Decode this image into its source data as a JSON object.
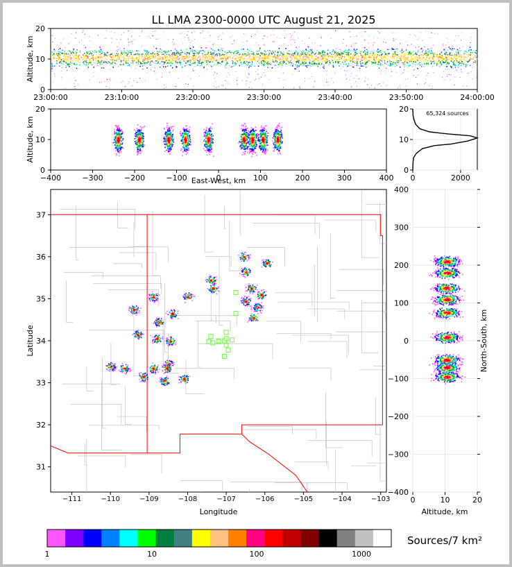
{
  "title": "LL LMA 2300-0000 UTC August 21, 2025",
  "chart_data": [
    {
      "panel": "altitude-vs-time",
      "type": "heatmap",
      "ylabel": "Altitude, km",
      "ylim": [
        0,
        20
      ],
      "yticks": [
        "0",
        "10",
        "20"
      ],
      "xticks": [
        "23:00:00",
        "23:10:00",
        "23:20:00",
        "23:30:00",
        "23:40:00",
        "23:50:00",
        "24:00:00"
      ],
      "band_altitude_km": 10.5
    },
    {
      "panel": "altitude-vs-east-west",
      "type": "heatmap",
      "xlabel": "East-West, km",
      "ylabel": "Altitude, km",
      "xlim": [
        -400,
        400
      ],
      "ylim": [
        0,
        20
      ],
      "xticks": [
        "−400",
        "−300",
        "−200",
        "−100",
        "0",
        "100",
        "200",
        "300",
        "400"
      ],
      "yticks": [
        "0",
        "10",
        "20"
      ],
      "clusters_x_km": [
        -240,
        -190,
        -120,
        -80,
        -25,
        60,
        80,
        105,
        140
      ]
    },
    {
      "panel": "altitude-histogram",
      "type": "line",
      "annotation": "65,324 sources",
      "xlim": [
        0,
        2700
      ],
      "ylim": [
        0,
        20
      ],
      "xticks": [
        "0",
        "2000"
      ],
      "yticks": [
        "0",
        "10",
        "20"
      ],
      "x": [
        0,
        5,
        30,
        150,
        400,
        900,
        1600,
        2300,
        2700,
        2400,
        1500,
        700,
        300,
        120,
        50,
        10,
        0
      ],
      "y": [
        0,
        2,
        4,
        5.5,
        7,
        8,
        8.5,
        9.5,
        10.5,
        11.2,
        11.8,
        12.5,
        13.5,
        15,
        16.5,
        18,
        20
      ]
    },
    {
      "panel": "plan-view",
      "type": "scatter",
      "xlabel": "Longitude",
      "ylabel": "Latitude",
      "xlim": [
        -111.55,
        -102.85
      ],
      "ylim": [
        30.4,
        37.6
      ],
      "xticks": [
        "−111",
        "−110",
        "−109",
        "−108",
        "−107",
        "−106",
        "−105",
        "−104",
        "−103"
      ],
      "yticks": [
        "31",
        "32",
        "33",
        "34",
        "35",
        "36",
        "37"
      ],
      "storm_cells": [
        {
          "lon": -106.55,
          "lat": 36.0
        },
        {
          "lon": -106.5,
          "lat": 35.65
        },
        {
          "lon": -105.95,
          "lat": 35.85
        },
        {
          "lon": -107.4,
          "lat": 35.45
        },
        {
          "lon": -107.35,
          "lat": 35.25
        },
        {
          "lon": -108.0,
          "lat": 35.05
        },
        {
          "lon": -106.35,
          "lat": 35.25
        },
        {
          "lon": -106.1,
          "lat": 35.1
        },
        {
          "lon": -106.5,
          "lat": 34.95
        },
        {
          "lon": -106.2,
          "lat": 34.8
        },
        {
          "lon": -106.3,
          "lat": 34.55
        },
        {
          "lon": -108.9,
          "lat": 35.05
        },
        {
          "lon": -108.4,
          "lat": 34.65
        },
        {
          "lon": -109.4,
          "lat": 34.75
        },
        {
          "lon": -108.75,
          "lat": 34.45
        },
        {
          "lon": -108.8,
          "lat": 34.05
        },
        {
          "lon": -109.3,
          "lat": 34.15
        },
        {
          "lon": -108.45,
          "lat": 34.0
        },
        {
          "lon": -108.5,
          "lat": 33.45
        },
        {
          "lon": -108.55,
          "lat": 33.35
        },
        {
          "lon": -108.9,
          "lat": 33.35
        },
        {
          "lon": -109.15,
          "lat": 33.15
        },
        {
          "lon": -109.65,
          "lat": 33.35
        },
        {
          "lon": -110.0,
          "lat": 33.4
        },
        {
          "lon": -108.6,
          "lat": 33.05
        },
        {
          "lon": -108.1,
          "lat": 33.1
        }
      ],
      "stations": [
        {
          "lon": -106.75,
          "lat": 35.15
        },
        {
          "lon": -106.75,
          "lat": 34.65
        },
        {
          "lon": -107.4,
          "lat": 34.1
        },
        {
          "lon": -107.45,
          "lat": 33.98
        },
        {
          "lon": -107.35,
          "lat": 33.95
        },
        {
          "lon": -107.2,
          "lat": 33.98
        },
        {
          "lon": -107.05,
          "lat": 34.0
        },
        {
          "lon": -107.0,
          "lat": 34.2
        },
        {
          "lon": -107.0,
          "lat": 34.05
        },
        {
          "lon": -106.85,
          "lat": 34.02
        },
        {
          "lon": -107.0,
          "lat": 33.9
        },
        {
          "lon": -106.95,
          "lat": 33.78
        },
        {
          "lon": -107.05,
          "lat": 33.63
        },
        {
          "lon": -107.2,
          "lat": 34.0
        }
      ]
    },
    {
      "panel": "north-south-vs-altitude",
      "type": "heatmap",
      "xlabel": "Altitude, km",
      "ylabel": "North-South, km",
      "xlim": [
        0,
        20
      ],
      "ylim": [
        -400,
        400
      ],
      "xticks": [
        "0",
        "10",
        "20"
      ],
      "yticks": [
        "400",
        "300",
        "200",
        "100",
        "0",
        "−100",
        "−200",
        "−300",
        "−400"
      ],
      "clusters_y_km": [
        210,
        180,
        140,
        110,
        75,
        10,
        -50,
        -70,
        -95
      ]
    },
    {
      "panel": "colorbar",
      "type": "colorbar",
      "label": "Sources/7 km²",
      "ticks": [
        "1",
        "10",
        "100",
        "1000"
      ],
      "colors": [
        "#ff55ff",
        "#8000ff",
        "#0000ff",
        "#0080ff",
        "#00ffff",
        "#00ff00",
        "#008040",
        "#408080",
        "#ffff00",
        "#ffc080",
        "#ff8000",
        "#ff0080",
        "#ff0000",
        "#c00000",
        "#800000",
        "#000000",
        "#808080",
        "#c0c0c0",
        "#ffffff"
      ]
    }
  ]
}
